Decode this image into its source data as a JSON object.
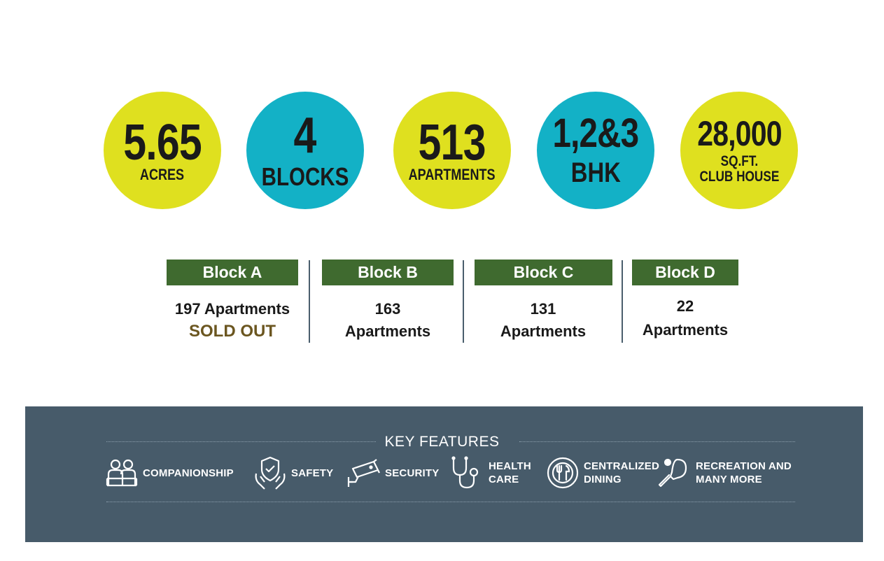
{
  "stats": [
    {
      "value": "5.65",
      "label": "ACRES",
      "color": "#dfe01f"
    },
    {
      "value": "4",
      "label": "BLOCKS",
      "color": "#13b1c6"
    },
    {
      "value": "513",
      "label": "APARTMENTS",
      "color": "#dfe01f"
    },
    {
      "value": "1,2&3",
      "label": "BHK",
      "color": "#13b1c6"
    },
    {
      "value": "28,000",
      "label": "SQ.FT.\nCLUB HOUSE",
      "color": "#dfe01f"
    }
  ],
  "blocks": [
    {
      "name": "Block A",
      "line1": "197 Apartments",
      "line2": "SOLD OUT"
    },
    {
      "name": "Block B",
      "line1": "163",
      "line2": "Apartments"
    },
    {
      "name": "Block C",
      "line1": "131",
      "line2": "Apartments"
    },
    {
      "name": "Block D",
      "line1": "22",
      "line2": "Apartments"
    }
  ],
  "key_features": {
    "title": "KEY FEATURES",
    "items": [
      {
        "label": "COMPANIONSHIP",
        "icon": "companionship-icon"
      },
      {
        "label": "SAFETY",
        "icon": "safety-icon"
      },
      {
        "label": "SECURITY",
        "icon": "cctv-camera-icon"
      },
      {
        "label": "HEALTH\nCARE",
        "icon": "stethoscope-icon"
      },
      {
        "label": "CENTRALIZED\nDINING",
        "icon": "dining-plate-icon"
      },
      {
        "label": "RECREATION AND\nMANY MORE",
        "icon": "table-tennis-icon"
      }
    ]
  },
  "colors": {
    "yellow": "#dfe01f",
    "teal": "#13b1c6",
    "block_green": "#3f6a2f",
    "sold_out": "#6b5620",
    "band": "#475b6a"
  }
}
